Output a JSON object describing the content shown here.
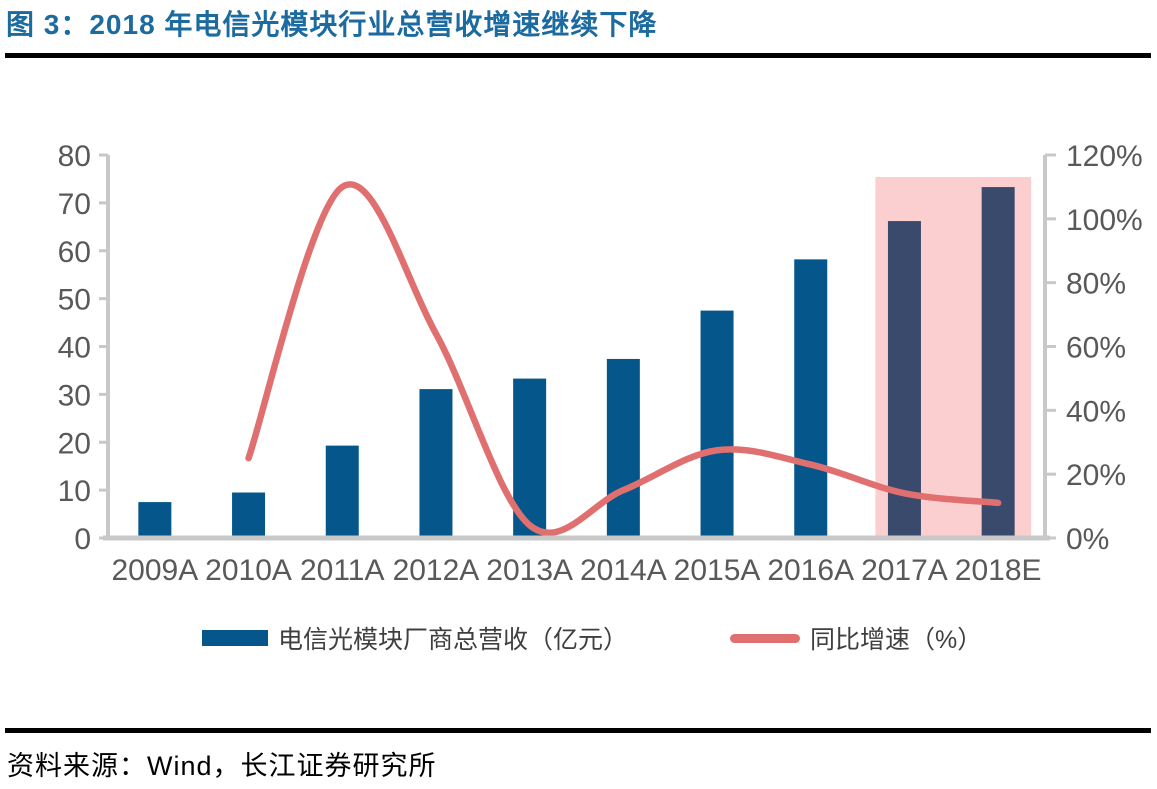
{
  "header": {
    "title": "图 3：2018 年电信光模块行业总营收增速继续下降"
  },
  "source": {
    "text": "资料来源：Wind，长江证券研究所"
  },
  "chart_data": {
    "type": "bar+line combo",
    "categories": [
      "2009A",
      "2010A",
      "2011A",
      "2012A",
      "2013A",
      "2014A",
      "2015A",
      "2016A",
      "2017A",
      "2018E"
    ],
    "series": [
      {
        "name": "电信光模块厂商总营收（亿元）",
        "type": "bar",
        "axis": "left",
        "values": [
          7.5,
          9.5,
          19.3,
          31.1,
          33.3,
          37.4,
          47.5,
          58.2,
          66.2,
          73.3
        ],
        "color": "#05568A",
        "highlight_color": "#3A4A6C"
      },
      {
        "name": "同比增速（%）",
        "type": "line",
        "axis": "right",
        "values_pct": [
          null,
          25,
          110,
          64,
          4,
          15,
          27.5,
          23,
          14,
          11
        ],
        "color": "#E07070"
      }
    ],
    "left_axis": {
      "min": 0,
      "max": 80,
      "ticks": [
        0,
        10,
        20,
        30,
        40,
        50,
        60,
        70,
        80
      ]
    },
    "right_axis": {
      "min": 0,
      "max": 120,
      "tick_labels": [
        "0%",
        "20%",
        "40%",
        "60%",
        "80%",
        "100%",
        "120%"
      ]
    },
    "highlight": {
      "categories": [
        "2017A",
        "2018E"
      ],
      "start_index": 8,
      "end_index": 9,
      "color": "#FBCFCF"
    },
    "legend": [
      {
        "label": "电信光模块厂商总营收（亿元）",
        "swatch": "bar"
      },
      {
        "label": "同比增速（%）",
        "swatch": "line"
      }
    ],
    "grid": false,
    "legend_position": "bottom",
    "axis_color": "#C8C8C8",
    "label_color": "#595959"
  }
}
